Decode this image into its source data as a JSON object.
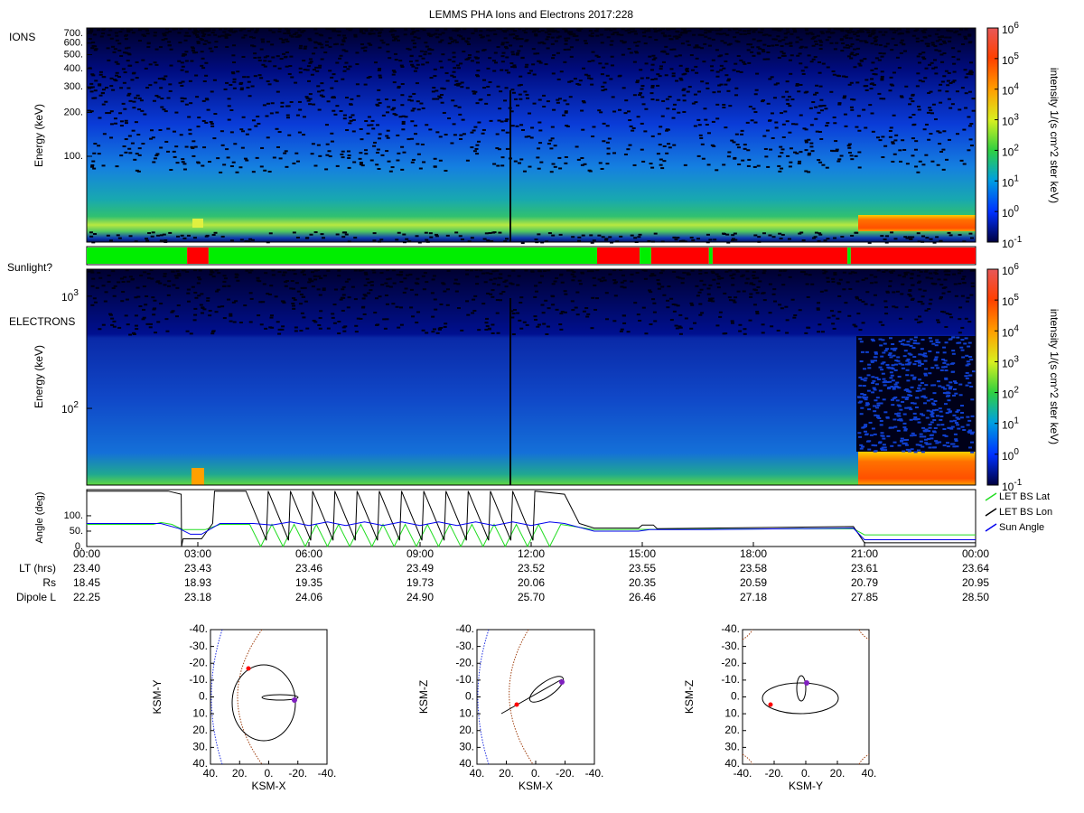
{
  "title": "LEMMS PHA Ions and Electrons  2017:228",
  "ions": {
    "label": "IONS",
    "y_label": "Energy (keV)",
    "log_scale": true,
    "ylim": [
      25.7,
      762
    ],
    "yticks": [
      {
        "value": 100,
        "label": "100."
      },
      {
        "value": 200,
        "label": "200."
      },
      {
        "value": 300,
        "label": "300."
      },
      {
        "value": 400,
        "label": "400."
      },
      {
        "value": 500,
        "label": "500."
      },
      {
        "value": 600,
        "label": "600."
      },
      {
        "value": 700,
        "label": "700."
      }
    ]
  },
  "sunlight": {
    "label": "Sunlight?",
    "colors": {
      "sun": "#00ee00",
      "shadow": "#ff0000"
    },
    "segments": [
      {
        "start": 0,
        "end": 2.71,
        "in_sunlight": true
      },
      {
        "start": 2.71,
        "end": 3.29,
        "in_sunlight": false
      },
      {
        "start": 3.29,
        "end": 13.78,
        "in_sunlight": true
      },
      {
        "start": 13.78,
        "end": 14.93,
        "in_sunlight": false
      },
      {
        "start": 14.93,
        "end": 15.24,
        "in_sunlight": true
      },
      {
        "start": 15.24,
        "end": 16.8,
        "in_sunlight": false
      },
      {
        "start": 16.8,
        "end": 16.9,
        "in_sunlight": true
      },
      {
        "start": 16.9,
        "end": 20.54,
        "in_sunlight": false
      },
      {
        "start": 20.54,
        "end": 20.63,
        "in_sunlight": true
      },
      {
        "start": 20.63,
        "end": 24,
        "in_sunlight": false
      }
    ]
  },
  "electrons": {
    "label": "ELECTRONS",
    "y_label": "Energy (keV)",
    "log_scale": true,
    "ylim": [
      20.7,
      1740
    ],
    "yticks": [
      {
        "value": 100,
        "base": "10",
        "exp": "2"
      },
      {
        "value": 1000,
        "base": "10",
        "exp": "3"
      }
    ]
  },
  "colorbar": {
    "label": "intensity 1/(s cm^2 ster keV)",
    "lim": [
      -1,
      6
    ],
    "ticks": [
      {
        "value": -1,
        "base": "10",
        "exp": "-1"
      },
      {
        "value": 0,
        "base": "10",
        "exp": "0"
      },
      {
        "value": 1,
        "base": "10",
        "exp": "1"
      },
      {
        "value": 2,
        "base": "10",
        "exp": "2"
      },
      {
        "value": 3,
        "base": "10",
        "exp": "3"
      },
      {
        "value": 4,
        "base": "10",
        "exp": "4"
      },
      {
        "value": 5,
        "base": "10",
        "exp": "5"
      },
      {
        "value": 6,
        "base": "10",
        "exp": "6"
      }
    ]
  },
  "angle": {
    "y_label": "Angle (deg)",
    "ylim": [
      0,
      185
    ],
    "xlim": [
      0,
      24
    ],
    "yticks": [
      {
        "value": 0,
        "label": "0."
      },
      {
        "value": 50,
        "label": "50."
      },
      {
        "value": 100,
        "label": "100."
      }
    ],
    "xticks": [
      {
        "value": 0,
        "label": "00:00"
      },
      {
        "value": 3,
        "label": "03:00"
      },
      {
        "value": 6,
        "label": "06:00"
      },
      {
        "value": 9,
        "label": "09:00"
      },
      {
        "value": 12,
        "label": "12:00"
      },
      {
        "value": 15,
        "label": "15:00"
      },
      {
        "value": 18,
        "label": "18:00"
      },
      {
        "value": 21,
        "label": "21:00"
      },
      {
        "value": 24,
        "label": "00:00"
      }
    ],
    "series": [
      {
        "name": "LET BS Lat",
        "color": "#22dd22",
        "x": [
          0,
          1.8,
          2.0,
          2.3,
          2.6,
          3.2,
          3.6,
          4.2,
          4.4,
          4.7,
          5.0,
          5.3,
          5.6,
          5.9,
          6.2,
          6.5,
          6.8,
          7.1,
          7.4,
          7.7,
          8.0,
          8.3,
          8.6,
          8.9,
          9.2,
          9.5,
          9.8,
          10.1,
          10.4,
          10.7,
          11.0,
          11.3,
          11.6,
          11.9,
          12.2,
          12.5,
          12.8,
          13.7,
          20.7,
          21.0,
          24
        ],
        "values": [
          72,
          72,
          78,
          72,
          55,
          55,
          72,
          72,
          72,
          0,
          72,
          0,
          72,
          0,
          72,
          0,
          72,
          0,
          72,
          0,
          72,
          0,
          72,
          0,
          72,
          0,
          72,
          0,
          72,
          0,
          72,
          0,
          72,
          0,
          72,
          0,
          72,
          55,
          58,
          38,
          38
        ]
      },
      {
        "name": "LET BS Lon",
        "color": "#000000",
        "x": [
          0,
          2.2,
          2.55,
          2.56,
          2.6,
          3.1,
          3.4,
          3.45,
          4.3,
          4.85,
          4.9,
          5.45,
          5.5,
          6.05,
          6.1,
          6.65,
          6.7,
          7.25,
          7.3,
          7.85,
          7.9,
          8.45,
          8.5,
          9.05,
          9.1,
          9.65,
          9.7,
          10.25,
          10.3,
          10.85,
          10.9,
          11.45,
          11.5,
          12.05,
          12.1,
          12.9,
          13.3,
          13.7,
          14.9,
          15.0,
          15.3,
          15.4,
          16.8,
          20.7,
          21.0,
          24
        ],
        "values": [
          180,
          180,
          170,
          0,
          25,
          25,
          75,
          180,
          180,
          20,
          180,
          20,
          180,
          20,
          180,
          20,
          180,
          20,
          180,
          20,
          180,
          20,
          180,
          20,
          180,
          20,
          180,
          20,
          180,
          20,
          180,
          20,
          180,
          20,
          180,
          170,
          75,
          60,
          60,
          70,
          70,
          58,
          60,
          65,
          12,
          12
        ]
      },
      {
        "name": "Sun Angle",
        "color": "#0000ee",
        "x": [
          0,
          2,
          2.5,
          2.8,
          3.1,
          3.6,
          4.5,
          5.0,
          5.5,
          6.0,
          6.5,
          7.0,
          7.5,
          8.0,
          8.5,
          9.0,
          9.5,
          10.0,
          10.5,
          11.0,
          11.5,
          12.0,
          12.5,
          12.9,
          13.7,
          14.9,
          15.2,
          16.8,
          20.7,
          21.0,
          24
        ],
        "values": [
          75,
          75,
          58,
          40,
          40,
          75,
          75,
          70,
          80,
          68,
          80,
          68,
          80,
          68,
          80,
          68,
          80,
          68,
          80,
          68,
          80,
          68,
          80,
          75,
          50,
          50,
          55,
          55,
          60,
          22,
          22
        ]
      }
    ]
  },
  "ephemeris": {
    "rows": [
      {
        "label": "LT (hrs)",
        "values": [
          "23.40",
          "23.43",
          "23.46",
          "23.49",
          "23.52",
          "23.55",
          "23.58",
          "23.61",
          "23.64"
        ]
      },
      {
        "label": "Rs",
        "values": [
          "18.45",
          "18.93",
          "19.35",
          "19.73",
          "20.06",
          "20.35",
          "20.59",
          "20.79",
          "20.95"
        ]
      },
      {
        "label": "Dipole L",
        "values": [
          "22.25",
          "23.18",
          "24.06",
          "24.90",
          "25.70",
          "26.46",
          "27.18",
          "27.85",
          "28.50"
        ]
      }
    ]
  },
  "orbits": [
    {
      "x_label": "KSM-X",
      "y_label": "KSM-Y",
      "xlim": [
        40,
        -40
      ],
      "ylim": [
        40,
        -40
      ],
      "xticks": [
        {
          "value": 40,
          "label": "40."
        },
        {
          "value": 20,
          "label": "20."
        },
        {
          "value": 0,
          "label": "0."
        },
        {
          "value": -20,
          "label": "-20."
        },
        {
          "value": -40,
          "label": "-40."
        }
      ],
      "yticks": [
        {
          "value": -40,
          "label": "-40."
        },
        {
          "value": -30,
          "label": "-30."
        },
        {
          "value": -20,
          "label": "-20."
        },
        {
          "value": -10,
          "label": "-10."
        },
        {
          "value": 0,
          "label": "0."
        },
        {
          "value": 10,
          "label": "10."
        },
        {
          "value": 20,
          "label": "20."
        },
        {
          "value": 30,
          "label": "30."
        },
        {
          "value": 40,
          "label": "40."
        }
      ]
    },
    {
      "x_label": "KSM-X",
      "y_label": "KSM-Z",
      "xlim": [
        40,
        -40
      ],
      "ylim": [
        40,
        -40
      ],
      "xticks": [
        {
          "value": 40,
          "label": "40."
        },
        {
          "value": 20,
          "label": "20."
        },
        {
          "value": 0,
          "label": "0."
        },
        {
          "value": -20,
          "label": "-20."
        },
        {
          "value": -40,
          "label": "-40."
        }
      ],
      "yticks": [
        {
          "value": -40,
          "label": "-40."
        },
        {
          "value": -30,
          "label": "-30."
        },
        {
          "value": -20,
          "label": "-20."
        },
        {
          "value": -10,
          "label": "-10."
        },
        {
          "value": 0,
          "label": "0."
        },
        {
          "value": 10,
          "label": "10."
        },
        {
          "value": 20,
          "label": "20."
        },
        {
          "value": 30,
          "label": "30."
        },
        {
          "value": 40,
          "label": "40."
        }
      ]
    },
    {
      "x_label": "KSM-Y",
      "y_label": "KSM-Z",
      "xlim": [
        -40,
        40
      ],
      "ylim": [
        40,
        -40
      ],
      "xticks": [
        {
          "value": -40,
          "label": "-40."
        },
        {
          "value": -20,
          "label": "-20."
        },
        {
          "value": 0,
          "label": "0."
        },
        {
          "value": 20,
          "label": "20."
        },
        {
          "value": 40,
          "label": "40."
        }
      ],
      "yticks": [
        {
          "value": -40,
          "label": "-40."
        },
        {
          "value": -30,
          "label": "-30."
        },
        {
          "value": -20,
          "label": "-20."
        },
        {
          "value": -10,
          "label": "-10."
        },
        {
          "value": 0,
          "label": "0."
        },
        {
          "value": 10,
          "label": "10."
        },
        {
          "value": 20,
          "label": "20."
        },
        {
          "value": 30,
          "label": "30."
        },
        {
          "value": 40,
          "label": "40."
        }
      ]
    }
  ]
}
